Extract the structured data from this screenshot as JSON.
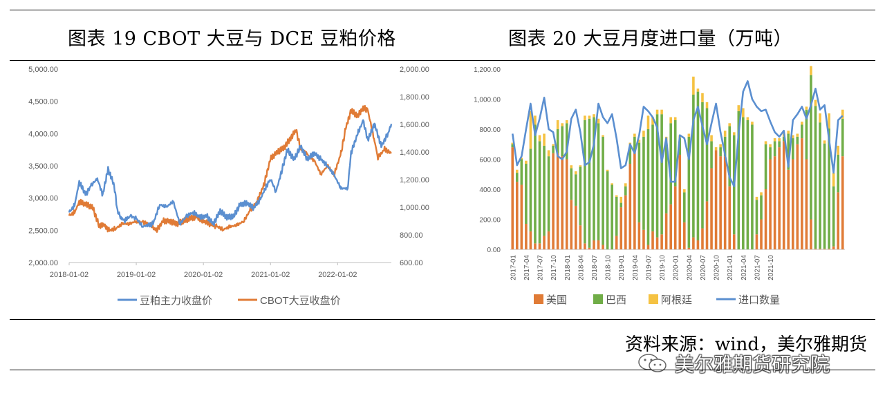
{
  "titles": {
    "left": "图表 19 CBOT 大豆与 DCE 豆粕价格",
    "right": "图表 20 大豆月度进口量（万吨）"
  },
  "source": "资料来源：wind，美尔雅期货",
  "watermark": "美尔雅期货研究院",
  "chart_data": [
    {
      "type": "line",
      "y_left": {
        "range": [
          2000,
          5000
        ],
        "ticks": [
          "5,000.00",
          "4,500.00",
          "4,000.00",
          "3,500.00",
          "3,000.00",
          "2,500.00",
          "2,000.00"
        ]
      },
      "y_right": {
        "range": [
          600,
          2000
        ],
        "ticks": [
          "2,000.00",
          "1,800.00",
          "1,600.00",
          "1,400.00",
          "1,200.00",
          "1,000.00",
          "800.00",
          "600.00"
        ]
      },
      "x_ticks": [
        "2018-01-02",
        "2019-01-02",
        "2020-01-02",
        "2021-01-02",
        "2022-01-02"
      ],
      "x_range": [
        2018.0,
        2022.8
      ],
      "legend": "bottom",
      "colors": {
        "dce": "#5b8fd0",
        "cbot": "#e07b36"
      },
      "series": [
        {
          "name": "豆粕主力收盘价",
          "axis": "left",
          "x": [
            2018.0,
            2018.08,
            2018.15,
            2018.25,
            2018.33,
            2018.42,
            2018.5,
            2018.58,
            2018.67,
            2018.72,
            2018.78,
            2018.83,
            2018.92,
            2019.0,
            2019.1,
            2019.25,
            2019.35,
            2019.45,
            2019.55,
            2019.65,
            2019.75,
            2019.85,
            2019.95,
            2020.05,
            2020.15,
            2020.25,
            2020.35,
            2020.45,
            2020.55,
            2020.65,
            2020.75,
            2020.85,
            2020.92,
            2021.0,
            2021.08,
            2021.15,
            2021.25,
            2021.35,
            2021.45,
            2021.55,
            2021.65,
            2021.75,
            2021.85,
            2021.95,
            2022.05,
            2022.15,
            2022.2,
            2022.3,
            2022.38,
            2022.45,
            2022.55,
            2022.65,
            2022.75,
            2022.8
          ],
          "values": [
            2780,
            2880,
            3250,
            3050,
            3200,
            3300,
            3050,
            3450,
            3200,
            2800,
            2680,
            2660,
            2720,
            2680,
            2560,
            2600,
            2900,
            2860,
            2950,
            2600,
            2720,
            2780,
            2700,
            2720,
            2600,
            2800,
            2700,
            2720,
            2900,
            2920,
            2850,
            2980,
            3150,
            3300,
            3100,
            3350,
            3750,
            3600,
            3800,
            3600,
            3700,
            3600,
            3500,
            3350,
            3150,
            3150,
            3700,
            4000,
            4200,
            3900,
            4150,
            3800,
            4000,
            4150
          ]
        },
        {
          "name": "CBOT大豆收盘价",
          "axis": "right",
          "x": [
            2018.0,
            2018.08,
            2018.15,
            2018.25,
            2018.35,
            2018.45,
            2018.5,
            2018.6,
            2018.7,
            2018.8,
            2018.9,
            2019.0,
            2019.1,
            2019.2,
            2019.3,
            2019.4,
            2019.5,
            2019.6,
            2019.7,
            2019.8,
            2019.9,
            2020.0,
            2020.1,
            2020.2,
            2020.3,
            2020.4,
            2020.5,
            2020.6,
            2020.7,
            2020.8,
            2020.9,
            2021.0,
            2021.1,
            2021.2,
            2021.3,
            2021.38,
            2021.45,
            2021.55,
            2021.65,
            2021.75,
            2021.85,
            2021.95,
            2022.05,
            2022.12,
            2022.2,
            2022.3,
            2022.38,
            2022.45,
            2022.55,
            2022.6,
            2022.7,
            2022.8
          ],
          "values": [
            940,
            960,
            1040,
            1020,
            1000,
            860,
            880,
            830,
            850,
            880,
            880,
            900,
            890,
            880,
            830,
            900,
            900,
            880,
            900,
            920,
            930,
            900,
            880,
            860,
            840,
            860,
            870,
            900,
            980,
            1040,
            1160,
            1350,
            1400,
            1430,
            1500,
            1560,
            1420,
            1380,
            1340,
            1240,
            1300,
            1240,
            1390,
            1570,
            1700,
            1660,
            1720,
            1700,
            1480,
            1360,
            1420,
            1390
          ]
        }
      ]
    },
    {
      "type": "bar",
      "stacked": true,
      "y_range": [
        0,
        1200
      ],
      "y_ticks": [
        "1,200.00",
        "1,000.00",
        "800.00",
        "600.00",
        "400.00",
        "200.00",
        "0.00"
      ],
      "x_tick_labels": [
        "2017-01",
        "2017-04",
        "2017-07",
        "2017-10",
        "2018-01",
        "2018-04",
        "2018-07",
        "2018-10",
        "2019-01",
        "2019-04",
        "2019-07",
        "2019-10",
        "2020-01",
        "2020-04",
        "2020-07",
        "2020-10",
        "2021-01",
        "2021-04",
        "2021-07",
        "2021-10"
      ],
      "legend": "bottom",
      "colors": {
        "us": "#e07b36",
        "brazil": "#70ad47",
        "argentina": "#f5c242",
        "total": "#5b8fd0"
      },
      "series": [
        {
          "name": "美国",
          "kind": "bar",
          "values": [
            680,
            450,
            430,
            170,
            120,
            40,
            40,
            90,
            120,
            640,
            640,
            620,
            600,
            330,
            290,
            160,
            40,
            10,
            60,
            60,
            30,
            0,
            0,
            90,
            280,
            360,
            570,
            650,
            180,
            130,
            30,
            120,
            80,
            100,
            240,
            300,
            420,
            630,
            180,
            10,
            80,
            60,
            140,
            320,
            540,
            660,
            620,
            620,
            420,
            100,
            0,
            0,
            0,
            0,
            100,
            200,
            400,
            600,
            620,
            680,
            720,
            530,
            600,
            700,
            740,
            600,
            200,
            5,
            5,
            5,
            5,
            20,
            380,
            620
          ]
        },
        {
          "name": "巴西",
          "kind": "bar",
          "values": [
            20,
            60,
            170,
            400,
            550,
            790,
            680,
            600,
            500,
            50,
            160,
            200,
            240,
            210,
            210,
            390,
            820,
            860,
            820,
            780,
            720,
            520,
            430,
            260,
            30,
            60,
            120,
            100,
            530,
            620,
            770,
            710,
            820,
            800,
            470,
            540,
            440,
            110,
            200,
            740,
            950,
            990,
            840,
            620,
            180,
            0,
            60,
            130,
            400,
            660,
            920,
            880,
            860,
            830,
            230,
            160,
            300,
            80,
            100,
            40,
            30,
            240,
            140,
            50,
            90,
            330,
            960,
            950,
            840,
            700,
            800,
            400,
            250,
            250
          ]
        },
        {
          "name": "阿根廷",
          "kind": "bar",
          "values": [
            10,
            20,
            10,
            20,
            250,
            60,
            40,
            80,
            40,
            10,
            60,
            20,
            20,
            20,
            20,
            10,
            30,
            20,
            20,
            30,
            10,
            10,
            10,
            10,
            40,
            20,
            20,
            20,
            20,
            40,
            90,
            50,
            30,
            30,
            40,
            40,
            20,
            20,
            20,
            20,
            120,
            20,
            60,
            40,
            40,
            20,
            20,
            40,
            20,
            20,
            40,
            60,
            20,
            20,
            20,
            20,
            20,
            20,
            20,
            20,
            20,
            20,
            20,
            20,
            20,
            20,
            60,
            40,
            60,
            20,
            100,
            90,
            60,
            60
          ]
        },
        {
          "name": "进口数量",
          "kind": "line",
          "values": [
            770,
            560,
            620,
            800,
            970,
            760,
            870,
            1010,
            800,
            780,
            620,
            600,
            650,
            870,
            930,
            780,
            560,
            580,
            700,
            970,
            880,
            840,
            900,
            740,
            540,
            560,
            700,
            640,
            760,
            950,
            920,
            880,
            810,
            580,
            740,
            450,
            450,
            760,
            740,
            600,
            860,
            950,
            820,
            700,
            840,
            970,
            780,
            630,
            480,
            420,
            770,
            1050,
            1120,
            1000,
            950,
            920,
            930,
            850,
            780,
            750,
            790,
            550,
            860,
            900,
            950,
            870,
            960,
            1070,
            930,
            960,
            730,
            510,
            860,
            890
          ]
        }
      ]
    }
  ]
}
